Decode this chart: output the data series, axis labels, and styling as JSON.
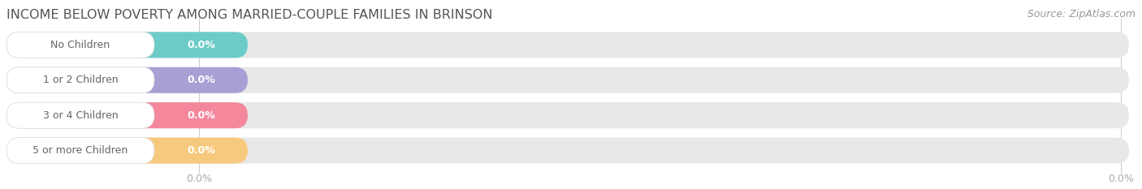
{
  "title": "INCOME BELOW POVERTY AMONG MARRIED-COUPLE FAMILIES IN BRINSON",
  "source_text": "Source: ZipAtlas.com",
  "categories": [
    "No Children",
    "1 or 2 Children",
    "3 or 4 Children",
    "5 or more Children"
  ],
  "values": [
    0.0,
    0.0,
    0.0,
    0.0
  ],
  "bar_colors": [
    "#6eccc8",
    "#a89fd4",
    "#f4879c",
    "#f7c97e"
  ],
  "bar_bg_color": "#e8e8e8",
  "label_text_color": "#666666",
  "title_color": "#555555",
  "source_color": "#999999",
  "background_color": "#ffffff",
  "tick_label_color": "#aaaaaa",
  "value_label_color": "#ffffff",
  "title_fontsize": 11.5,
  "source_fontsize": 9,
  "category_fontsize": 9,
  "value_fontsize": 9,
  "tick_fontsize": 9
}
